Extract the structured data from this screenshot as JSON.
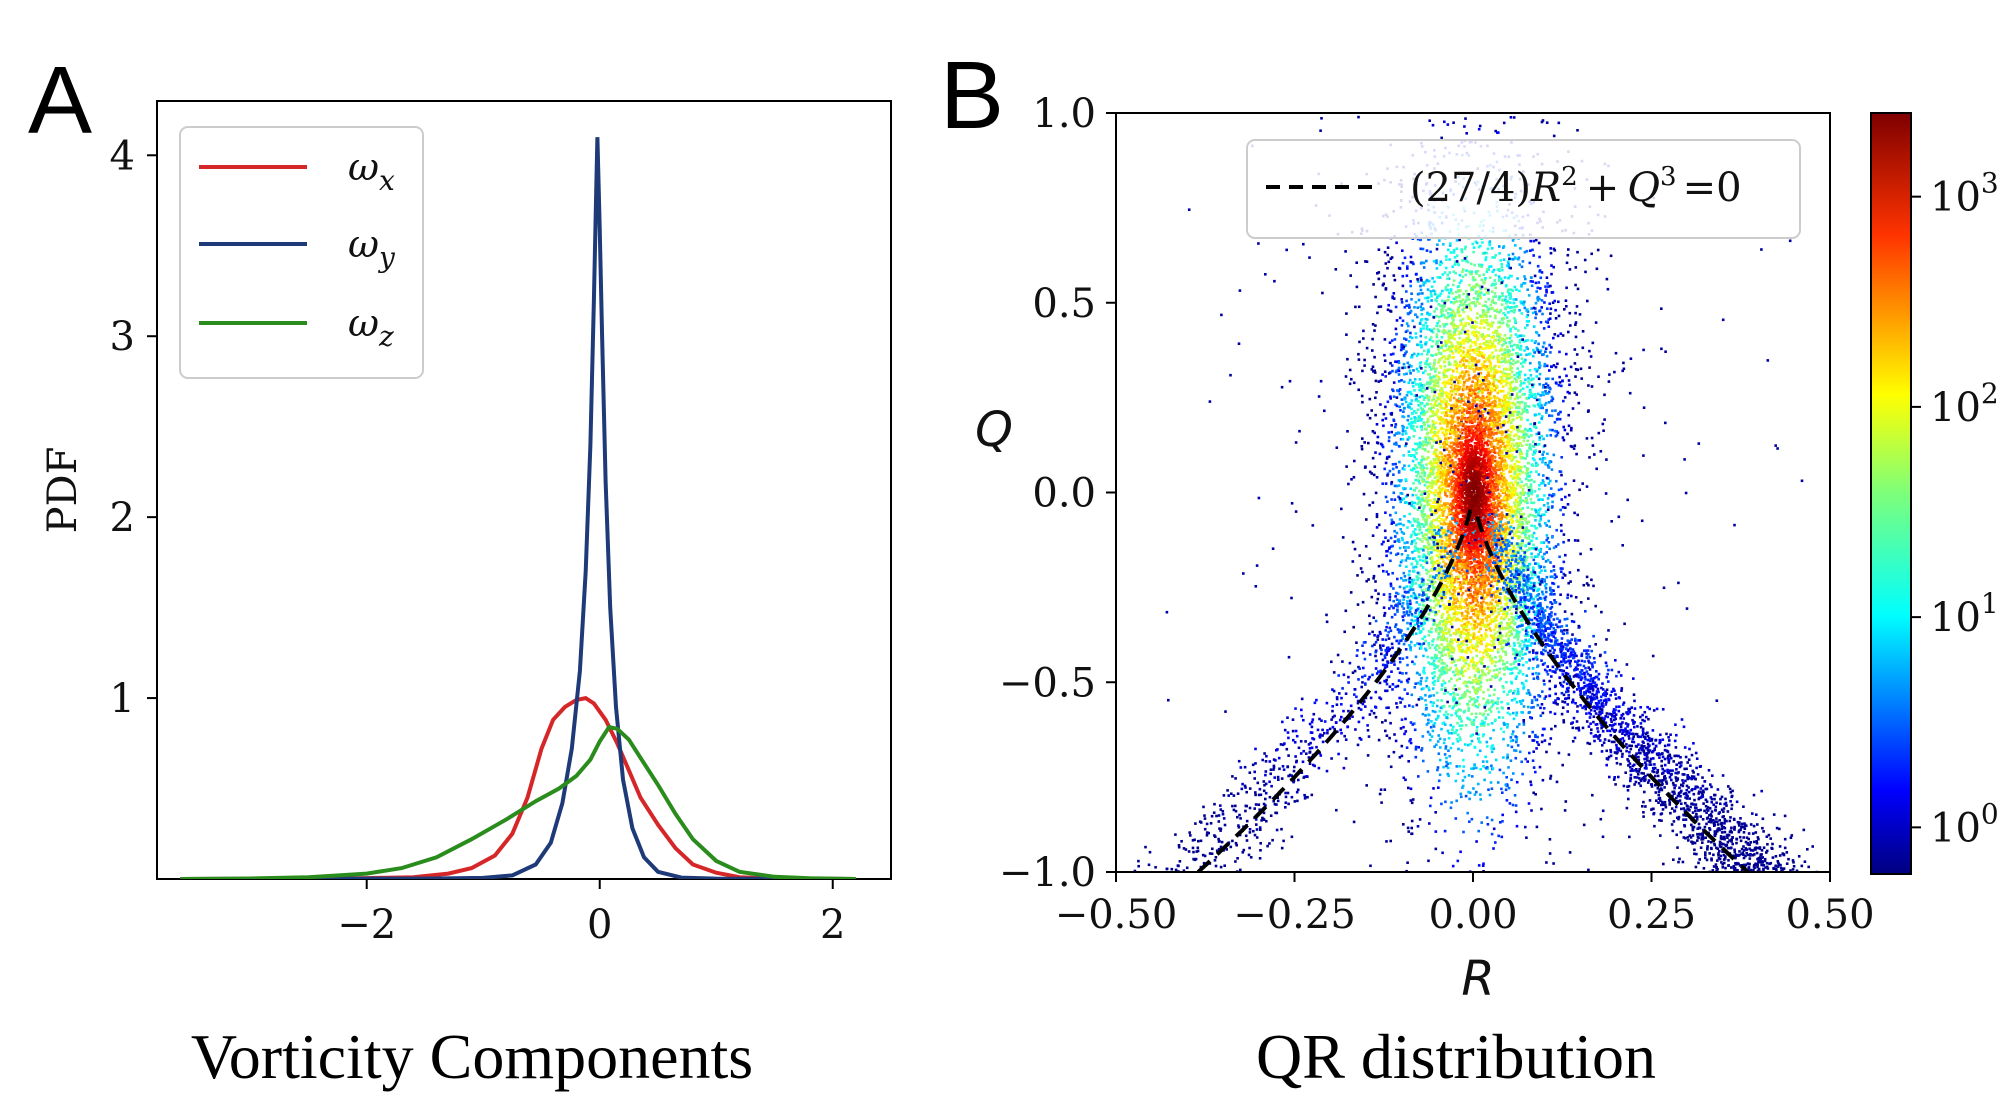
{
  "panelA": {
    "letter": "A",
    "caption": "Vorticity Components",
    "chart_data": {
      "type": "line",
      "title": "",
      "xlabel": "",
      "ylabel": "PDF",
      "xlim": [
        -3.8,
        2.5
      ],
      "ylim": [
        0,
        4.3
      ],
      "xticks": [
        -2,
        0,
        2
      ],
      "xtick_labels": [
        "−2",
        "0",
        "2"
      ],
      "yticks": [
        1,
        2,
        3,
        4
      ],
      "ytick_labels": [
        "1",
        "2",
        "3",
        "4"
      ],
      "legend_position": "top-left",
      "series": [
        {
          "name": "ωx",
          "label_main": "ω",
          "label_sub": "x",
          "color": "#d62728",
          "points": [
            [
              -3.6,
              0
            ],
            [
              -2.5,
              0.002
            ],
            [
              -2.0,
              0.005
            ],
            [
              -1.6,
              0.01
            ],
            [
              -1.3,
              0.03
            ],
            [
              -1.1,
              0.06
            ],
            [
              -0.9,
              0.13
            ],
            [
              -0.75,
              0.25
            ],
            [
              -0.62,
              0.45
            ],
            [
              -0.5,
              0.72
            ],
            [
              -0.4,
              0.88
            ],
            [
              -0.3,
              0.95
            ],
            [
              -0.2,
              0.99
            ],
            [
              -0.12,
              1.0
            ],
            [
              -0.05,
              0.97
            ],
            [
              0.05,
              0.88
            ],
            [
              0.15,
              0.75
            ],
            [
              0.25,
              0.6
            ],
            [
              0.35,
              0.45
            ],
            [
              0.5,
              0.3
            ],
            [
              0.65,
              0.17
            ],
            [
              0.8,
              0.08
            ],
            [
              1.0,
              0.035
            ],
            [
              1.2,
              0.01
            ],
            [
              1.5,
              0.003
            ],
            [
              2.2,
              0
            ]
          ]
        },
        {
          "name": "ωy",
          "label_main": "ω",
          "label_sub": "y",
          "color": "#1f3a78",
          "points": [
            [
              -3.6,
              0
            ],
            [
              -1.5,
              0.002
            ],
            [
              -1.0,
              0.006
            ],
            [
              -0.75,
              0.02
            ],
            [
              -0.55,
              0.08
            ],
            [
              -0.42,
              0.2
            ],
            [
              -0.32,
              0.42
            ],
            [
              -0.24,
              0.72
            ],
            [
              -0.17,
              1.15
            ],
            [
              -0.12,
              1.7
            ],
            [
              -0.08,
              2.4
            ],
            [
              -0.05,
              3.2
            ],
            [
              -0.03,
              3.8
            ],
            [
              -0.02,
              4.1
            ],
            [
              0.0,
              3.6
            ],
            [
              0.02,
              3.0
            ],
            [
              0.05,
              2.2
            ],
            [
              0.09,
              1.5
            ],
            [
              0.14,
              0.95
            ],
            [
              0.2,
              0.55
            ],
            [
              0.28,
              0.28
            ],
            [
              0.38,
              0.12
            ],
            [
              0.5,
              0.04
            ],
            [
              0.7,
              0.008
            ],
            [
              1.0,
              0.002
            ],
            [
              2.2,
              0
            ]
          ]
        },
        {
          "name": "ωz",
          "label_main": "ω",
          "label_sub": "z",
          "color": "#2a8c1c",
          "points": [
            [
              -3.6,
              0
            ],
            [
              -3.0,
              0.003
            ],
            [
              -2.5,
              0.01
            ],
            [
              -2.0,
              0.03
            ],
            [
              -1.7,
              0.06
            ],
            [
              -1.4,
              0.12
            ],
            [
              -1.1,
              0.22
            ],
            [
              -0.8,
              0.33
            ],
            [
              -0.55,
              0.43
            ],
            [
              -0.35,
              0.5
            ],
            [
              -0.2,
              0.57
            ],
            [
              -0.08,
              0.66
            ],
            [
              0.0,
              0.76
            ],
            [
              0.08,
              0.84
            ],
            [
              0.15,
              0.83
            ],
            [
              0.25,
              0.77
            ],
            [
              0.35,
              0.67
            ],
            [
              0.5,
              0.52
            ],
            [
              0.65,
              0.36
            ],
            [
              0.8,
              0.22
            ],
            [
              1.0,
              0.1
            ],
            [
              1.2,
              0.04
            ],
            [
              1.5,
              0.012
            ],
            [
              1.8,
              0.004
            ],
            [
              2.2,
              0
            ]
          ]
        }
      ]
    }
  },
  "panelB": {
    "letter": "B",
    "caption": "QR distribution",
    "chart_data": {
      "type": "heatmap",
      "title": "",
      "xlabel": "R",
      "ylabel": "Q",
      "xlim": [
        -0.5,
        0.5
      ],
      "ylim": [
        -1.0,
        1.0
      ],
      "xticks": [
        -0.5,
        -0.25,
        0.0,
        0.25,
        0.5
      ],
      "xtick_labels": [
        "−0.50",
        "−0.25",
        "0.00",
        "0.25",
        "0.50"
      ],
      "yticks": [
        -1.0,
        -0.5,
        0.0,
        0.5,
        1.0
      ],
      "ytick_labels": [
        "−1.0",
        "−0.5",
        "0.0",
        "0.5",
        "1.0"
      ],
      "color_scale": "log",
      "colorbar_range": [
        0.6,
        2500
      ],
      "colorbar_ticks": [
        1,
        10,
        100,
        1000
      ],
      "colorbar_tick_base": "10",
      "colorbar_tick_exponents": [
        "0",
        "1",
        "2",
        "3"
      ],
      "colormap": "jet",
      "legend_position": "top-right",
      "legend": {
        "label": "(27/4)R² + Q³ = 0",
        "parts": {
          "lhs": "(27/4)",
          "r": "R",
          "r_exp": "2",
          "plus": "+",
          "q": "Q",
          "q_exp": "3",
          "rhs": "=0"
        },
        "line_style": "dashed",
        "color": "#000000"
      },
      "density": {
        "peak_r": 0.0,
        "peak_q": 0.0,
        "core_spread_r": 0.05,
        "core_spread_q": 0.35,
        "peak_count": 2500
      },
      "curve": {
        "equation": "(27/4)R^2 + Q^3 = 0",
        "q_range": [
          -1.0,
          -0.05
        ]
      }
    }
  }
}
